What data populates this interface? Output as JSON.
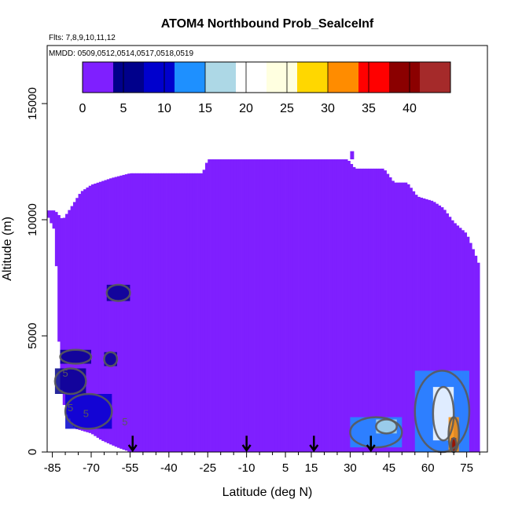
{
  "chart_data": {
    "type": "heatmap",
    "title": "ATOM4 Northbound Prob_SealceInf",
    "subtitle_flights": "Flts: 7,8,9,10,11,12",
    "subtitle_dates": "MMDD: 0509,0512,0514,0517,0518,0519",
    "xlabel": "Latitude (deg N)",
    "ylabel": "Altitude (m)",
    "xlim": [
      -87,
      83
    ],
    "ylim": [
      0,
      17500
    ],
    "x_ticks": [
      -85,
      -70,
      -55,
      -40,
      -25,
      -10,
      5,
      15,
      30,
      45,
      60,
      75
    ],
    "x_minor_ticks": [
      -80,
      -75,
      -65,
      -60,
      -50,
      -45,
      -35,
      -30,
      -20,
      -15,
      -5,
      0,
      10,
      20,
      25,
      35,
      40,
      50,
      55,
      65,
      70,
      80
    ],
    "y_ticks": [
      0,
      5000,
      10000,
      15000
    ],
    "colorbar": {
      "ticks": [
        0,
        5,
        10,
        15,
        20,
        25,
        30,
        35,
        40
      ],
      "range": [
        0,
        45
      ],
      "colors": [
        "#7f1fff",
        "#00008b",
        "#0000cd",
        "#1e90ff",
        "#add8e6",
        "#ffffff",
        "#ffffe0",
        "#ffd700",
        "#ff8c00",
        "#ff0000",
        "#8b0000",
        "#a52a2a"
      ]
    },
    "envelope_top_m": [
      [
        -87,
        10400
      ],
      [
        -84,
        10400
      ],
      [
        -81,
        10000
      ],
      [
        -78,
        10500
      ],
      [
        -74,
        11200
      ],
      [
        -70,
        11500
      ],
      [
        -62,
        11800
      ],
      [
        -55,
        12000
      ],
      [
        -40,
        12000
      ],
      [
        -27,
        12000
      ],
      [
        -25,
        12600
      ],
      [
        5,
        12600
      ],
      [
        29,
        12600
      ],
      [
        32,
        12200
      ],
      [
        43,
        12200
      ],
      [
        47,
        11600
      ],
      [
        52,
        11600
      ],
      [
        56,
        11000
      ],
      [
        62,
        10800
      ],
      [
        66,
        10500
      ],
      [
        70,
        9900
      ],
      [
        75,
        9400
      ],
      [
        78,
        8600
      ],
      [
        80,
        8000
      ]
    ],
    "envelope_bottom_m": [
      [
        -87,
        10200
      ],
      [
        -84,
        9500
      ],
      [
        -83,
        6500
      ],
      [
        -82,
        3000
      ],
      [
        -80,
        1700
      ],
      [
        -76,
        1000
      ],
      [
        -70,
        800
      ],
      [
        -66,
        500
      ],
      [
        -60,
        200
      ],
      [
        -55,
        0
      ],
      [
        80,
        0
      ]
    ],
    "notable_values": [
      {
        "lat_range": [
          -84,
          -72
        ],
        "alt_range": [
          2500,
          3600
        ],
        "prob": 6
      },
      {
        "lat_range": [
          -80,
          -62
        ],
        "alt_range": [
          1000,
          2500
        ],
        "prob": 8
      },
      {
        "lat_range": [
          -65,
          -60
        ],
        "alt_range": [
          3700,
          4300
        ],
        "prob": 6
      },
      {
        "lat_range": [
          -64,
          -55
        ],
        "alt_range": [
          6500,
          7200
        ],
        "prob": 4
      },
      {
        "lat_range": [
          -82,
          -70
        ],
        "alt_range": [
          3800,
          4400
        ],
        "prob": 4
      },
      {
        "lat_range": [
          30,
          50
        ],
        "alt_range": [
          200,
          1500
        ],
        "prob": 12
      },
      {
        "lat_range": [
          40,
          48
        ],
        "alt_range": [
          800,
          1400
        ],
        "prob": 17
      },
      {
        "lat_range": [
          55,
          76
        ],
        "alt_range": [
          0,
          3500
        ],
        "prob": 13
      },
      {
        "lat_range": [
          62,
          70
        ],
        "alt_range": [
          500,
          2800
        ],
        "prob": 20
      },
      {
        "lat_range": [
          68,
          72
        ],
        "alt_range": [
          0,
          1500
        ],
        "prob": 30
      },
      {
        "lat_range": [
          69,
          71
        ],
        "alt_range": [
          0,
          600
        ],
        "prob": 40
      }
    ],
    "contour_labels": [
      {
        "text": "5",
        "x": -80,
        "y": 3250
      },
      {
        "text": "5",
        "x": -78,
        "y": 1750
      },
      {
        "text": "5",
        "x": -72,
        "y": 1500
      },
      {
        "text": "5",
        "x": -57,
        "y": 1150
      }
    ],
    "flight_arrows_lat": [
      -54,
      -10,
      16,
      38
    ],
    "colors": {
      "background_fill": "#7f1fff",
      "contour": "#5a5a5a",
      "arrow": "#000000"
    }
  }
}
